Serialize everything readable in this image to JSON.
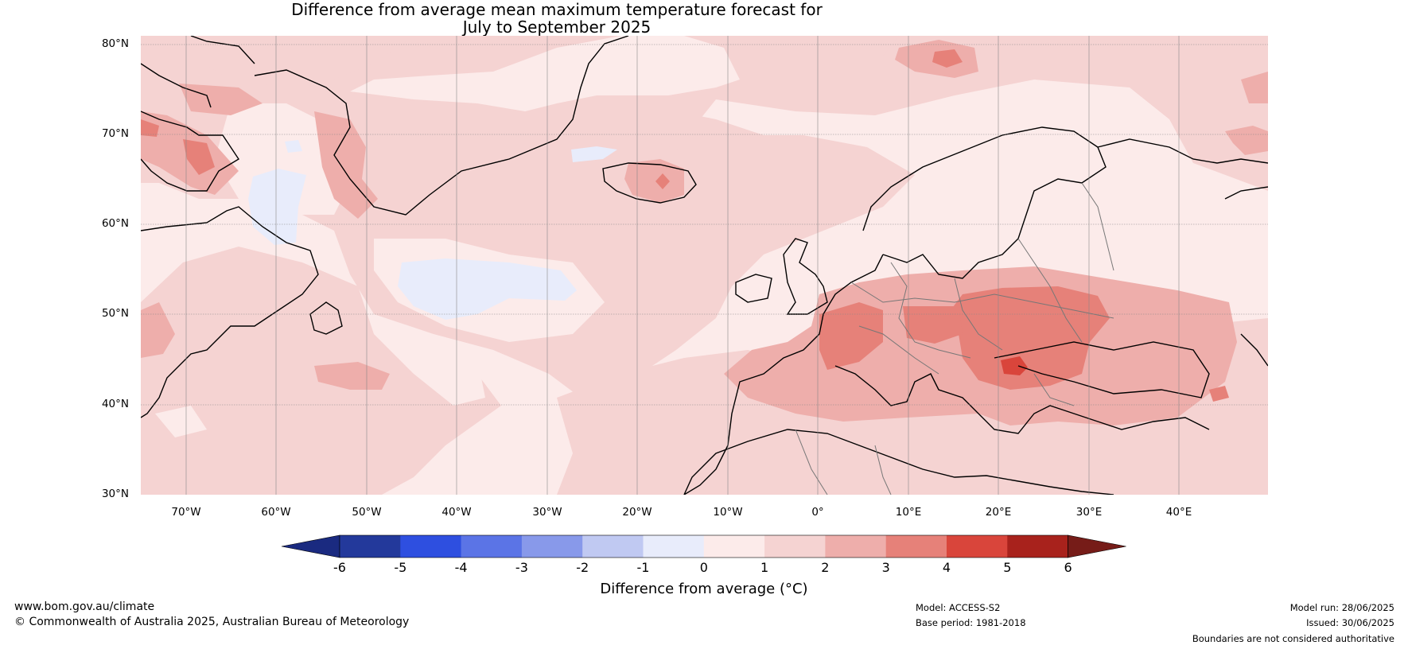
{
  "title": {
    "line1": "Difference from average mean maximum temperature forecast for",
    "line2": "July to September 2025"
  },
  "latitude_labels": [
    "80°N",
    "70°N",
    "60°N",
    "50°N",
    "40°N",
    "30°N"
  ],
  "longitude_labels": [
    "70°W",
    "60°W",
    "50°W",
    "40°W",
    "30°W",
    "20°W",
    "10°W",
    "0°",
    "10°E",
    "20°E",
    "30°E",
    "40°E"
  ],
  "colorbar": {
    "ticks": [
      "-6",
      "-5",
      "-4",
      "-3",
      "-2",
      "-1",
      "0",
      "1",
      "2",
      "3",
      "4",
      "5",
      "6"
    ],
    "colors": [
      "#23399b",
      "#2e4fe0",
      "#5b74e6",
      "#8899ea",
      "#c0c9f2",
      "#e8ecfb",
      "#fcebea",
      "#f5d3d2",
      "#eeaeab",
      "#e68179",
      "#d9453b",
      "#a8221c"
    ],
    "under_color": "#1a2a80",
    "over_color": "#761c18",
    "label": "Difference from average (°C)"
  },
  "colors": {
    "ocean_base": "#fcebea",
    "coast": "#000000",
    "border": "#777777"
  },
  "footer": {
    "url": "www.bom.gov.au/climate",
    "copyright": "© Commonwealth of Australia 2025, Australian Bureau of Meteorology",
    "model": "Model: ACCESS-S2",
    "base_period": "Base period: 1981-2018",
    "model_run": "Model run: 28/06/2025",
    "issued": "Issued: 30/06/2025",
    "disclaimer": "Boundaries are not considered authoritative"
  }
}
